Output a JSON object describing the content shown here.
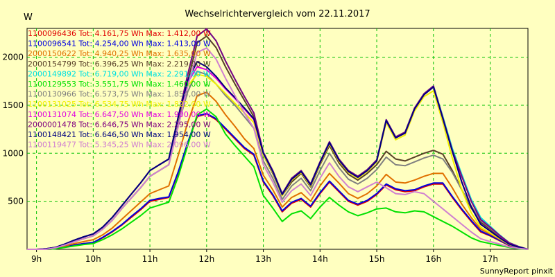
{
  "chart_data": {
    "type": "line",
    "title": "Wechselrichtervergleich vom 22.11.2017",
    "ylabel": "W",
    "footer": "SunnyReport pinxit",
    "ylim": [
      0,
      2300
    ],
    "y_ticks": [
      500,
      1000,
      1500,
      2000
    ],
    "x_ticks": [
      {
        "label": "9h",
        "hour": 9
      },
      {
        "label": "10h",
        "hour": 10
      },
      {
        "label": "11h",
        "hour": 11
      },
      {
        "label": "12h",
        "hour": 12
      },
      {
        "label": "13h",
        "hour": 13
      },
      {
        "label": "14h",
        "hour": 14
      },
      {
        "label": "15h",
        "hour": 15
      },
      {
        "label": "16h",
        "hour": 16
      },
      {
        "label": "17h",
        "hour": 17
      }
    ],
    "xlim": [
      "8:50",
      "17:40"
    ],
    "grid": true,
    "legend_position": "top-left",
    "x": [
      "8:50",
      "9:00",
      "9:10",
      "9:20",
      "9:30",
      "9:40",
      "9:50",
      "10:00",
      "10:10",
      "10:20",
      "10:30",
      "10:40",
      "10:50",
      "11:00",
      "11:10",
      "11:20",
      "11:30",
      "11:40",
      "11:50",
      "12:00",
      "12:10",
      "12:20",
      "12:30",
      "12:40",
      "12:50",
      "13:00",
      "13:10",
      "13:20",
      "13:30",
      "13:40",
      "13:50",
      "14:00",
      "14:10",
      "14:20",
      "14:30",
      "14:40",
      "14:50",
      "15:00",
      "15:10",
      "15:20",
      "15:30",
      "15:40",
      "15:50",
      "16:00",
      "16:10",
      "16:20",
      "16:30",
      "16:40",
      "16:50",
      "17:00",
      "17:10",
      "17:20",
      "17:30",
      "17:40"
    ],
    "series": [
      {
        "legend": "1100096436 Tot: 4.161,75 Wh Max: 1.412,00 W",
        "color": "#e00000",
        "values": [
          0,
          0,
          0,
          5,
          25,
          45,
          60,
          70,
          120,
          180,
          250,
          330,
          410,
          500,
          520,
          540,
          800,
          1100,
          1380,
          1410,
          1350,
          1250,
          1150,
          1050,
          980,
          700,
          560,
          390,
          480,
          520,
          440,
          580,
          700,
          600,
          500,
          460,
          500,
          570,
          670,
          620,
          600,
          610,
          650,
          680,
          680,
          540,
          410,
          290,
          180,
          140,
          90,
          40,
          15,
          0
        ]
      },
      {
        "legend": "1100096541 Tot: 4.254,00 Wh Max: 1.413,00 W",
        "color": "#0000e0",
        "values": [
          0,
          0,
          0,
          5,
          25,
          45,
          60,
          70,
          125,
          185,
          255,
          340,
          420,
          510,
          530,
          545,
          810,
          1110,
          1390,
          1413,
          1360,
          1260,
          1160,
          1060,
          990,
          710,
          570,
          400,
          490,
          530,
          450,
          590,
          710,
          610,
          510,
          470,
          510,
          580,
          680,
          630,
          610,
          620,
          660,
          690,
          690,
          550,
          420,
          300,
          190,
          145,
          95,
          45,
          18,
          0
        ]
      },
      {
        "legend": "2000150622 Tot: 4.940,25 Wh Max: 1.635,00 W",
        "color": "#e07000",
        "values": [
          0,
          0,
          0,
          10,
          35,
          60,
          80,
          100,
          150,
          220,
          310,
          400,
          490,
          580,
          620,
          660,
          980,
          1320,
          1600,
          1635,
          1540,
          1400,
          1280,
          1150,
          1050,
          770,
          620,
          440,
          540,
          590,
          500,
          660,
          790,
          690,
          580,
          530,
          580,
          660,
          780,
          700,
          690,
          720,
          760,
          790,
          790,
          640,
          470,
          330,
          210,
          160,
          105,
          50,
          20,
          0
        ]
      },
      {
        "legend": "2000154799 Tot: 6.396,25 Wh Max: 2.219,00 W",
        "color": "#584028",
        "values": [
          0,
          0,
          0,
          15,
          45,
          80,
          110,
          140,
          210,
          300,
          420,
          530,
          640,
          760,
          820,
          880,
          1300,
          1750,
          2150,
          2219,
          2100,
          1900,
          1720,
          1550,
          1380,
          980,
          790,
          560,
          700,
          790,
          650,
          880,
          1080,
          900,
          780,
          720,
          790,
          880,
          1020,
          940,
          920,
          960,
          1000,
          1030,
          990,
          820,
          620,
          430,
          280,
          210,
          130,
          60,
          25,
          0
        ]
      },
      {
        "legend": "2000149892 Tot: 6.719,00 Wh Max: 2.291,00 W",
        "color": "#00e0e0",
        "values": [
          0,
          0,
          5,
          20,
          55,
          95,
          130,
          160,
          230,
          330,
          450,
          570,
          690,
          820,
          880,
          940,
          1380,
          1820,
          2220,
          2291,
          2170,
          1960,
          1770,
          1590,
          1420,
          1010,
          820,
          580,
          740,
          820,
          680,
          910,
          1120,
          940,
          820,
          760,
          830,
          930,
          1350,
          1170,
          1220,
          1470,
          1620,
          1700,
          1380,
          1050,
          780,
          520,
          330,
          240,
          150,
          70,
          30,
          0
        ]
      },
      {
        "legend": "1100129553 Tot: 3.551,75 Wh Max: 1.460,00 W",
        "color": "#00e000",
        "values": [
          0,
          0,
          0,
          5,
          20,
          35,
          50,
          60,
          100,
          150,
          210,
          280,
          350,
          430,
          460,
          490,
          760,
          1080,
          1400,
          1460,
          1380,
          1200,
          1080,
          970,
          860,
          560,
          430,
          290,
          370,
          400,
          320,
          440,
          540,
          460,
          390,
          350,
          380,
          420,
          430,
          390,
          380,
          400,
          390,
          340,
          290,
          240,
          180,
          120,
          80,
          60,
          40,
          20,
          5,
          0
        ]
      },
      {
        "legend": "1100130966 Tot: 6.573,75 Wh Max: 1.854,00 W",
        "color": "#808080",
        "values": [
          0,
          0,
          0,
          15,
          45,
          80,
          110,
          140,
          210,
          300,
          420,
          530,
          640,
          760,
          820,
          880,
          1300,
          1640,
          1854,
          1820,
          1720,
          1600,
          1500,
          1380,
          1260,
          920,
          740,
          520,
          660,
          740,
          610,
          820,
          1000,
          850,
          730,
          680,
          740,
          830,
          960,
          880,
          870,
          910,
          950,
          980,
          940,
          800,
          620,
          450,
          300,
          220,
          140,
          65,
          28,
          0
        ]
      },
      {
        "legend": "1100131025 Tot: 6.534,75 Wh Max: 1.822,00 W",
        "color": "#f0f000",
        "values": [
          0,
          0,
          5,
          20,
          55,
          95,
          130,
          160,
          230,
          330,
          450,
          570,
          690,
          820,
          880,
          940,
          1380,
          1700,
          1822,
          1800,
          1720,
          1620,
          1520,
          1420,
          1320,
          980,
          800,
          560,
          720,
          800,
          660,
          890,
          1100,
          920,
          800,
          740,
          810,
          910,
          1320,
          1140,
          1190,
          1440,
          1590,
          1650,
          1320,
          950,
          620,
          380,
          230,
          170,
          110,
          50,
          20,
          0
        ]
      },
      {
        "legend": "1100131074 Tot: 6.647,50 Wh Max: 1.900,00 W",
        "color": "#e000e0",
        "values": [
          0,
          0,
          5,
          20,
          55,
          95,
          130,
          160,
          230,
          330,
          450,
          570,
          690,
          820,
          880,
          940,
          1380,
          1740,
          1900,
          1870,
          1780,
          1670,
          1570,
          1460,
          1350,
          1000,
          810,
          570,
          730,
          810,
          670,
          900,
          1110,
          930,
          810,
          750,
          820,
          920,
          1340,
          1160,
          1210,
          1460,
          1610,
          1690,
          1360,
          1020,
          700,
          440,
          260,
          190,
          120,
          55,
          22,
          0
        ]
      },
      {
        "legend": "2000001478 Tot: 6.646,75 Wh Max: 2.295,00 W",
        "color": "#800080",
        "values": [
          0,
          0,
          5,
          20,
          55,
          95,
          130,
          160,
          230,
          330,
          450,
          570,
          690,
          820,
          880,
          940,
          1380,
          1820,
          2220,
          2295,
          2170,
          1960,
          1770,
          1590,
          1420,
          1010,
          820,
          580,
          740,
          820,
          680,
          910,
          1120,
          940,
          820,
          760,
          830,
          930,
          1350,
          1170,
          1220,
          1470,
          1620,
          1700,
          1370,
          1030,
          760,
          500,
          310,
          230,
          145,
          68,
          28,
          0
        ]
      },
      {
        "legend": "1100148421 Tot: 6.646,50 Wh Max: 1.954,00 W",
        "color": "#000080",
        "values": [
          0,
          0,
          5,
          20,
          55,
          95,
          130,
          160,
          230,
          330,
          450,
          570,
          690,
          820,
          880,
          940,
          1380,
          1760,
          1954,
          1900,
          1800,
          1680,
          1580,
          1470,
          1360,
          1000,
          810,
          570,
          730,
          810,
          670,
          900,
          1110,
          930,
          810,
          750,
          820,
          920,
          1340,
          1160,
          1210,
          1460,
          1610,
          1690,
          1360,
          1020,
          700,
          440,
          260,
          190,
          120,
          55,
          22,
          0
        ]
      },
      {
        "legend": "1100119477 Tot: 5.345,25 Wh Max: 2.096,00 W",
        "color": "#d080d0",
        "values": [
          0,
          0,
          0,
          15,
          45,
          80,
          110,
          140,
          210,
          300,
          420,
          530,
          640,
          760,
          820,
          880,
          1280,
          1700,
          2050,
          2096,
          1980,
          1780,
          1600,
          1420,
          1260,
          880,
          700,
          490,
          610,
          680,
          560,
          740,
          900,
          760,
          650,
          600,
          650,
          700,
          640,
          580,
          570,
          600,
          580,
          500,
          420,
          340,
          260,
          180,
          110,
          80,
          55,
          25,
          10,
          0
        ]
      }
    ]
  }
}
